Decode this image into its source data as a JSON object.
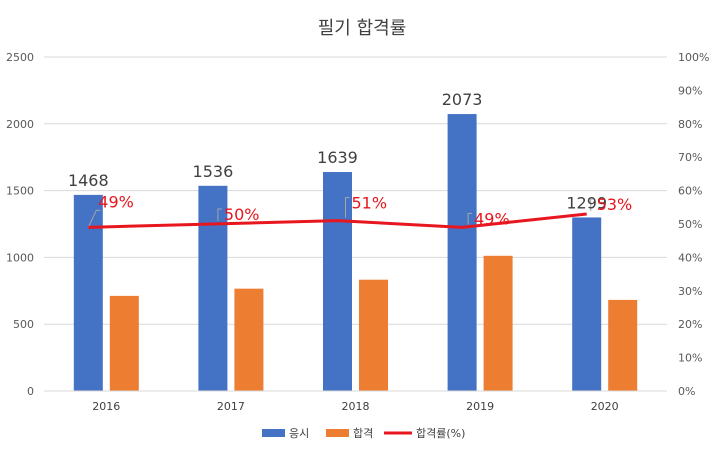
{
  "chart_data": {
    "type": "bar",
    "title": "필기 합격률",
    "categories": [
      "2016",
      "2017",
      "2018",
      "2019",
      "2020"
    ],
    "series": [
      {
        "name": "응시",
        "kind": "bar",
        "axis": "left",
        "color": "#4472c4",
        "values": [
          1468,
          1536,
          1639,
          2073,
          1299
        ]
      },
      {
        "name": "합격",
        "kind": "bar",
        "axis": "left",
        "color": "#ed7d31",
        "values": [
          712,
          766,
          833,
          1012,
          682
        ]
      },
      {
        "name": "합격률(%)",
        "kind": "line",
        "axis": "right",
        "color": "#e8161e",
        "values": [
          49,
          50,
          51,
          49,
          53
        ]
      }
    ],
    "bar_data_labels": [
      "1468",
      "1536",
      "1639",
      "2073",
      "1299"
    ],
    "rate_data_labels": [
      "49%",
      "50%",
      "51%",
      "49%",
      "53%"
    ],
    "ylim_left": [
      0,
      2500
    ],
    "yticks_left": [
      "0",
      "500",
      "1000",
      "1500",
      "2000",
      "2500"
    ],
    "ylim_right": [
      0,
      100
    ],
    "yticks_right": [
      "0%",
      "10%",
      "20%",
      "30%",
      "40%",
      "50%",
      "60%",
      "70%",
      "80%",
      "90%",
      "100%"
    ],
    "legend": [
      "응시",
      "합격",
      "합격률(%)"
    ],
    "legend_position": "bottom",
    "grid": true
  }
}
